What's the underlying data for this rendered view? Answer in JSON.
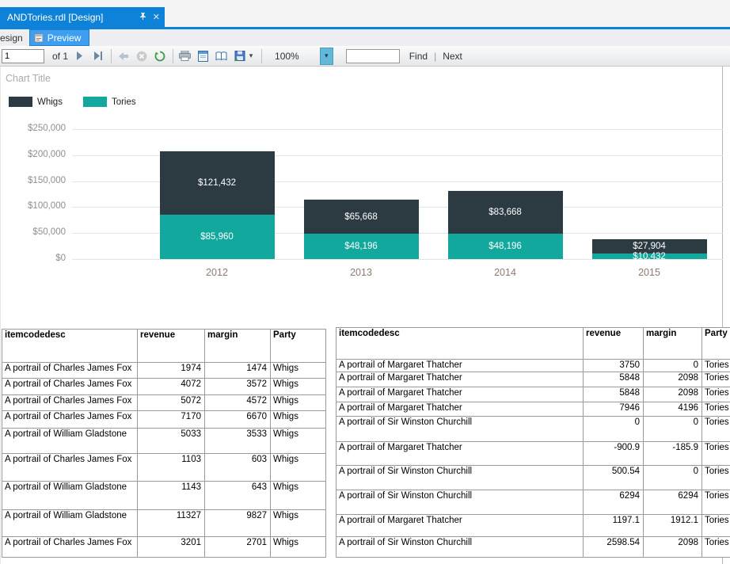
{
  "window": {
    "document_tab": "ANDTories.rdl [Design]",
    "design_tab_label": "esign",
    "preview_tab_label": "Preview"
  },
  "toolbar": {
    "current_page": "1",
    "of_label": "of 1",
    "zoom_value": "100%",
    "find_value": "",
    "find_label": "Find",
    "separator_label": "|",
    "next_label": "Next"
  },
  "colors": {
    "whigs": "#2c3a42",
    "tories": "#12a89d",
    "document_tab_blue": "#0e82d8",
    "preview_tab_blue": "#3e9ef0"
  },
  "chart_data": {
    "type": "bar",
    "stacked": true,
    "title": "Chart Title",
    "categories": [
      "2012",
      "2013",
      "2014",
      "2015"
    ],
    "series": [
      {
        "name": "Whigs",
        "color": "#2c3a42",
        "values": [
          121432,
          65668,
          83668,
          27904
        ],
        "labels": [
          "$121,432",
          "$65,668",
          "$83,668",
          "$27,904"
        ]
      },
      {
        "name": "Tories",
        "color": "#12a89d",
        "values": [
          85960,
          48196,
          48196,
          10432
        ],
        "labels": [
          "$85,960",
          "$48,196",
          "$48,196",
          "$10,432"
        ]
      }
    ],
    "stack_order_bottom_to_top": [
      "Tories",
      "Whigs"
    ],
    "y_ticks": [
      "$250,000",
      "$200,000",
      "$150,000",
      "$100,000",
      "$50,000",
      "$0"
    ],
    "ylim": [
      0,
      250000
    ],
    "ylabel": "",
    "xlabel": "",
    "grid": true,
    "legend_position": "top-left"
  },
  "left_table": {
    "columns": [
      "itemcodedesc",
      "revenue",
      "margin",
      "Party"
    ],
    "rows": [
      [
        "A portrail of Charles James Fox",
        "1974",
        "1474",
        "Whigs"
      ],
      [
        "A portrail of Charles James Fox",
        "4072",
        "3572",
        "Whigs"
      ],
      [
        "A portrail of Charles James Fox",
        "5072",
        "4572",
        "Whigs"
      ],
      [
        "A portrail of Charles James Fox",
        "7170",
        "6670",
        "Whigs"
      ],
      [
        "A portrail of William Gladstone",
        "5033",
        "3533",
        "Whigs"
      ],
      [
        "A portrail of Charles James Fox",
        "1103",
        "603",
        "Whigs"
      ],
      [
        "A portrail of William Gladstone",
        "1143",
        "643",
        "Whigs"
      ],
      [
        "A portrail of William Gladstone",
        "11327",
        "9827",
        "Whigs"
      ],
      [
        "A portrail of Charles James Fox",
        "3201",
        "2701",
        "Whigs"
      ]
    ]
  },
  "right_table": {
    "columns": [
      "itemcodedesc",
      "revenue",
      "margin",
      "Party"
    ],
    "rows": [
      [
        "A portrail of Margaret Thatcher",
        "3750",
        "0",
        "Tories"
      ],
      [
        "A portrail of Margaret Thatcher",
        "5848",
        "2098",
        "Tories"
      ],
      [
        "A portrail of Margaret Thatcher",
        "5848",
        "2098",
        "Tories"
      ],
      [
        "A portrail of Margaret Thatcher",
        "7946",
        "4196",
        "Tories"
      ],
      [
        "A portrail of Sir Winston Churchill",
        "0",
        "0",
        "Tories"
      ],
      [
        "A portrail of Margaret Thatcher",
        "-900.9",
        "-185.9",
        "Tories"
      ],
      [
        "A portrail of Sir Winston Churchill",
        "500.54",
        "0",
        "Tories"
      ],
      [
        "A portrail of Sir Winston Churchill",
        "6294",
        "6294",
        "Tories"
      ],
      [
        "A portrail of Margaret Thatcher",
        "1197.1",
        "1912.1",
        "Tories"
      ],
      [
        "A portrail of Sir Winston Churchill",
        "2598.54",
        "2098",
        "Tories"
      ]
    ]
  }
}
